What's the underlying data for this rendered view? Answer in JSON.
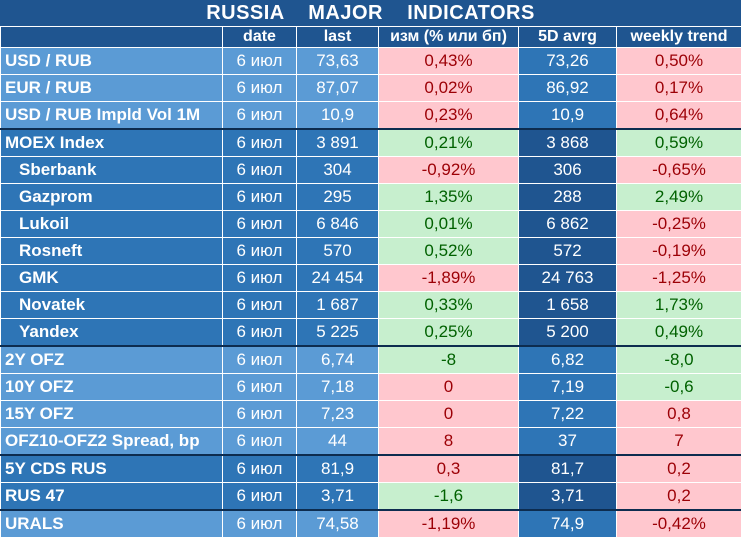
{
  "title": "RUSSIA    MAJOR    INDICATORS",
  "headers": [
    "",
    "date",
    "last",
    "изм (% или бп)",
    "5D avrg",
    "weekly trend"
  ],
  "rows": [
    {
      "name": "USD / RUB",
      "date": "6 июл",
      "last": "73,63",
      "chg": "0,43%",
      "chg_sign": "neg",
      "avg": "73,26",
      "trend": "0,50%",
      "trend_sign": "neg",
      "group": 1
    },
    {
      "name": "EUR / RUB",
      "date": "6 июл",
      "last": "87,07",
      "chg": "0,02%",
      "chg_sign": "neg",
      "avg": "86,92",
      "trend": "0,17%",
      "trend_sign": "neg",
      "group": 1
    },
    {
      "name": "USD / RUB Impld Vol 1M",
      "date": "6 июл",
      "last": "10,9",
      "chg": "0,23%",
      "chg_sign": "neg",
      "avg": "10,9",
      "trend": "0,64%",
      "trend_sign": "neg",
      "group": 1
    },
    {
      "name": "MOEX Index",
      "date": "6 июл",
      "last": "3 891",
      "chg": "0,21%",
      "chg_sign": "pos",
      "avg": "3 868",
      "trend": "0,59%",
      "trend_sign": "pos",
      "group": 2
    },
    {
      "name": "Sberbank",
      "date": "6 июл",
      "last": "304",
      "chg": "-0,92%",
      "chg_sign": "neg",
      "avg": "306",
      "trend": "-0,65%",
      "trend_sign": "neg",
      "group": 2,
      "indent": true
    },
    {
      "name": "Gazprom",
      "date": "6 июл",
      "last": "295",
      "chg": "1,35%",
      "chg_sign": "pos",
      "avg": "288",
      "trend": "2,49%",
      "trend_sign": "pos",
      "group": 2,
      "indent": true
    },
    {
      "name": "Lukoil",
      "date": "6 июл",
      "last": "6 846",
      "chg": "0,01%",
      "chg_sign": "pos",
      "avg": "6 862",
      "trend": "-0,25%",
      "trend_sign": "neg",
      "group": 2,
      "indent": true
    },
    {
      "name": "Rosneft",
      "date": "6 июл",
      "last": "570",
      "chg": "0,52%",
      "chg_sign": "pos",
      "avg": "572",
      "trend": "-0,19%",
      "trend_sign": "neg",
      "group": 2,
      "indent": true
    },
    {
      "name": "GMK",
      "date": "6 июл",
      "last": "24 454",
      "chg": "-1,89%",
      "chg_sign": "neg",
      "avg": "24 763",
      "trend": "-1,25%",
      "trend_sign": "neg",
      "group": 2,
      "indent": true
    },
    {
      "name": "Novatek",
      "date": "6 июл",
      "last": "1 687",
      "chg": "0,33%",
      "chg_sign": "pos",
      "avg": "1 658",
      "trend": "1,73%",
      "trend_sign": "pos",
      "group": 2,
      "indent": true
    },
    {
      "name": "Yandex",
      "date": "6 июл",
      "last": "5 225",
      "chg": "0,25%",
      "chg_sign": "pos",
      "avg": "5 200",
      "trend": "0,49%",
      "trend_sign": "pos",
      "group": 2,
      "indent": true
    },
    {
      "name": "2Y OFZ",
      "date": "6 июл",
      "last": "6,74",
      "chg": "-8",
      "chg_sign": "pos",
      "avg": "6,82",
      "trend": "-8,0",
      "trend_sign": "pos",
      "group": 3
    },
    {
      "name": "10Y OFZ",
      "date": "6 июл",
      "last": "7,18",
      "chg": "0",
      "chg_sign": "neg",
      "avg": "7,19",
      "trend": "-0,6",
      "trend_sign": "pos",
      "group": 3
    },
    {
      "name": "15Y OFZ",
      "date": "6 июл",
      "last": "7,23",
      "chg": "0",
      "chg_sign": "neg",
      "avg": "7,22",
      "trend": "0,8",
      "trend_sign": "neg",
      "group": 3
    },
    {
      "name": "OFZ10-OFZ2 Spread, bp",
      "date": "6 июл",
      "last": "44",
      "chg": "8",
      "chg_sign": "neg",
      "avg": "37",
      "trend": "7",
      "trend_sign": "neg",
      "group": 3
    },
    {
      "name": "5Y CDS RUS",
      "date": "6 июл",
      "last": "81,9",
      "chg": "0,3",
      "chg_sign": "neg",
      "avg": "81,7",
      "trend": "0,2",
      "trend_sign": "neg",
      "group": 4
    },
    {
      "name": "RUS 47",
      "date": "6 июл",
      "last": "3,71",
      "chg": "-1,6",
      "chg_sign": "pos",
      "avg": "3,71",
      "trend": "0,2",
      "trend_sign": "neg",
      "group": 4
    },
    {
      "name": "URALS",
      "date": "6 июл",
      "last": "74,58",
      "chg": "-1,19%",
      "chg_sign": "neg",
      "avg": "74,9",
      "trend": "-0,42%",
      "trend_sign": "neg",
      "group": 5
    }
  ],
  "colors": {
    "header": "#1f5590",
    "name_light": "#5b9bd5",
    "name_dark": "#2e75b6",
    "positive_bg": "#c7efce",
    "positive_text": "#006100",
    "negative_bg": "#ffc7ce",
    "negative_text": "#9c0006"
  }
}
